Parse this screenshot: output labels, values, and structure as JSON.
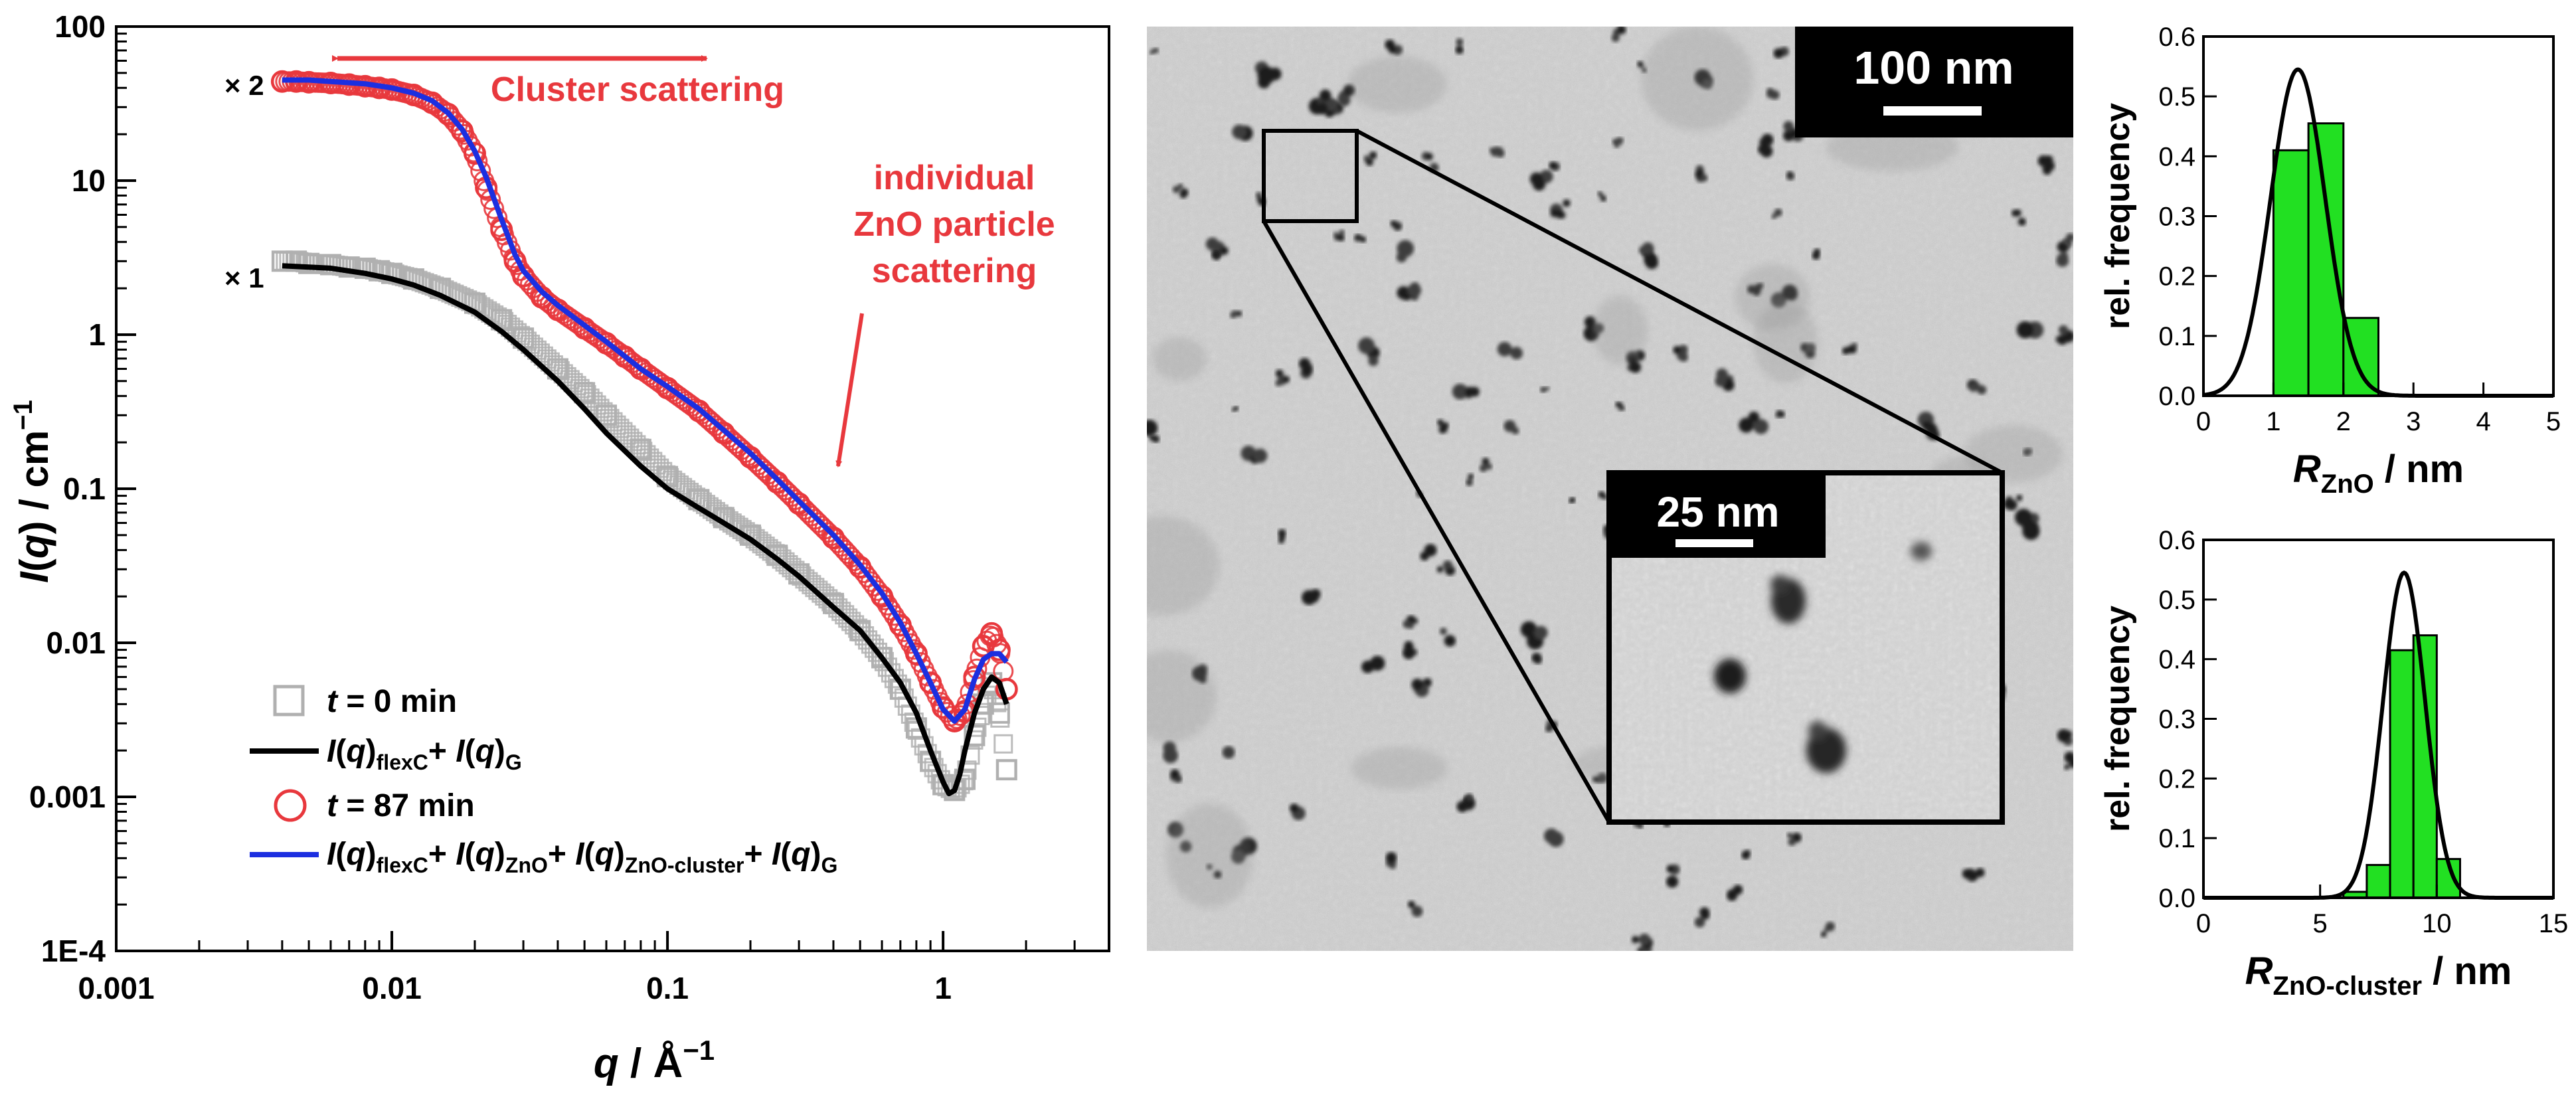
{
  "chart_data": [
    {
      "id": "saxs",
      "type": "scatter",
      "xlabel": "q / Å⁻¹",
      "ylabel": "I(q) / cm⁻¹",
      "xscale": "log",
      "yscale": "log",
      "xlim": [
        0.001,
        4
      ],
      "ylim": [
        0.0001,
        100
      ],
      "x_ticks": [
        0.001,
        0.01,
        0.1,
        1
      ],
      "x_tick_labels": [
        "0.001",
        "0.01",
        "0.1",
        "1"
      ],
      "y_ticks": [
        0.0001,
        0.001,
        0.01,
        0.1,
        1,
        10,
        100
      ],
      "y_tick_labels": [
        "1E-4",
        "0.001",
        "0.01",
        "0.1",
        "1",
        "10",
        "100"
      ],
      "annotations": {
        "cluster": "Cluster scattering",
        "individual": [
          "individual",
          "ZnO particle",
          "scattering"
        ],
        "times2": "× 2",
        "times1": "× 1"
      },
      "legend": {
        "placement": "bottom-left",
        "entries": [
          {
            "key": "t0",
            "parts": [
              {
                "t": "t",
                "i": true
              },
              {
                "t": " = 0 min"
              }
            ]
          },
          {
            "key": "fit0",
            "parts": [
              {
                "t": "I",
                "i": true
              },
              {
                "t": "("
              },
              {
                "t": "q",
                "i": true
              },
              {
                "t": ")"
              },
              {
                "t": "flexC",
                "sub": true
              },
              {
                "t": "+ "
              },
              {
                "t": "I",
                "i": true
              },
              {
                "t": "("
              },
              {
                "t": "q",
                "i": true
              },
              {
                "t": ")"
              },
              {
                "t": "G",
                "sub": true
              }
            ]
          },
          {
            "key": "t87",
            "parts": [
              {
                "t": "t",
                "i": true
              },
              {
                "t": " = 87 min"
              }
            ]
          },
          {
            "key": "fit87",
            "parts": [
              {
                "t": "I",
                "i": true
              },
              {
                "t": "("
              },
              {
                "t": "q",
                "i": true
              },
              {
                "t": ")"
              },
              {
                "t": "flexC",
                "sub": true
              },
              {
                "t": "+ "
              },
              {
                "t": "I",
                "i": true
              },
              {
                "t": "("
              },
              {
                "t": "q",
                "i": true
              },
              {
                "t": ")"
              },
              {
                "t": "ZnO",
                "sub": true
              },
              {
                "t": "+ "
              },
              {
                "t": "I",
                "i": true
              },
              {
                "t": "("
              },
              {
                "t": "q",
                "i": true
              },
              {
                "t": ")"
              },
              {
                "t": "ZnO-cluster",
                "sub": true
              },
              {
                "t": "+ "
              },
              {
                "t": "I",
                "i": true
              },
              {
                "t": "("
              },
              {
                "t": "q",
                "i": true
              },
              {
                "t": ")"
              },
              {
                "t": "G",
                "sub": true
              }
            ]
          }
        ]
      },
      "series": [
        {
          "key": "t0",
          "marker": "square",
          "color": "#b0b0b0",
          "x": [
            0.004,
            0.0045,
            0.005,
            0.006,
            0.007,
            0.008,
            0.009,
            0.01,
            0.012,
            0.015,
            0.02,
            0.025,
            0.03,
            0.04,
            0.05,
            0.06,
            0.08,
            0.1,
            0.13,
            0.16,
            0.2,
            0.25,
            0.3,
            0.4,
            0.5,
            0.6,
            0.7,
            0.8,
            0.9,
            1.0,
            1.1,
            1.2,
            1.3,
            1.4,
            1.5,
            1.6,
            1.7
          ],
          "y": [
            3.0,
            3.0,
            2.9,
            2.85,
            2.75,
            2.7,
            2.6,
            2.5,
            2.3,
            2.0,
            1.6,
            1.25,
            0.95,
            0.6,
            0.42,
            0.3,
            0.18,
            0.12,
            0.085,
            0.065,
            0.05,
            0.037,
            0.028,
            0.018,
            0.012,
            0.008,
            0.005,
            0.0028,
            0.0017,
            0.0012,
            0.0011,
            0.0013,
            0.0025,
            0.004,
            0.0055,
            0.0035,
            0.0015
          ]
        },
        {
          "key": "fit0",
          "marker": "line",
          "color": "#000000",
          "x": [
            0.004,
            0.006,
            0.008,
            0.01,
            0.012,
            0.015,
            0.02,
            0.025,
            0.03,
            0.04,
            0.05,
            0.06,
            0.08,
            0.1,
            0.13,
            0.16,
            0.2,
            0.25,
            0.3,
            0.4,
            0.5,
            0.6,
            0.7,
            0.8,
            0.9,
            1.0,
            1.05,
            1.1,
            1.15,
            1.2,
            1.3,
            1.4,
            1.5,
            1.6,
            1.7
          ],
          "y": [
            2.8,
            2.7,
            2.5,
            2.3,
            2.1,
            1.8,
            1.4,
            1.05,
            0.8,
            0.5,
            0.33,
            0.23,
            0.14,
            0.1,
            0.075,
            0.06,
            0.047,
            0.035,
            0.027,
            0.017,
            0.012,
            0.008,
            0.0055,
            0.0035,
            0.002,
            0.00125,
            0.00105,
            0.0011,
            0.0014,
            0.002,
            0.0035,
            0.005,
            0.006,
            0.0055,
            0.004
          ]
        },
        {
          "key": "t87",
          "marker": "circle",
          "color": "#e8383d",
          "x": [
            0.004,
            0.0045,
            0.005,
            0.006,
            0.007,
            0.008,
            0.009,
            0.01,
            0.012,
            0.014,
            0.016,
            0.018,
            0.02,
            0.022,
            0.025,
            0.028,
            0.03,
            0.035,
            0.04,
            0.05,
            0.06,
            0.07,
            0.08,
            0.1,
            0.13,
            0.16,
            0.2,
            0.25,
            0.3,
            0.4,
            0.5,
            0.6,
            0.7,
            0.8,
            0.9,
            1.0,
            1.1,
            1.2,
            1.3,
            1.4,
            1.5,
            1.6,
            1.7
          ],
          "y": [
            44,
            44,
            43.5,
            43,
            42,
            41,
            40,
            39,
            36,
            32,
            27,
            21,
            15,
            9,
            4.8,
            3.0,
            2.4,
            1.75,
            1.45,
            1.1,
            0.88,
            0.72,
            0.6,
            0.45,
            0.32,
            0.23,
            0.16,
            0.11,
            0.08,
            0.048,
            0.031,
            0.02,
            0.013,
            0.0085,
            0.0055,
            0.0038,
            0.0031,
            0.0036,
            0.006,
            0.0095,
            0.0115,
            0.009,
            0.005
          ]
        },
        {
          "key": "fit87",
          "marker": "line",
          "color": "#1c2fe0",
          "x": [
            0.004,
            0.005,
            0.006,
            0.008,
            0.01,
            0.012,
            0.014,
            0.016,
            0.018,
            0.02,
            0.022,
            0.025,
            0.028,
            0.03,
            0.035,
            0.04,
            0.05,
            0.06,
            0.08,
            0.1,
            0.13,
            0.16,
            0.2,
            0.25,
            0.3,
            0.4,
            0.5,
            0.6,
            0.7,
            0.8,
            0.9,
            1.0,
            1.1,
            1.2,
            1.3,
            1.4,
            1.5,
            1.6,
            1.7
          ],
          "y": [
            45,
            45,
            44,
            42.5,
            40,
            37,
            33,
            27.5,
            21.5,
            15.5,
            10.5,
            5.6,
            3.3,
            2.6,
            1.9,
            1.55,
            1.15,
            0.9,
            0.6,
            0.46,
            0.33,
            0.24,
            0.17,
            0.115,
            0.083,
            0.05,
            0.032,
            0.021,
            0.0135,
            0.0085,
            0.0055,
            0.0037,
            0.0031,
            0.0037,
            0.0058,
            0.0078,
            0.0085,
            0.0085,
            0.0075
          ]
        }
      ]
    },
    {
      "id": "hist1",
      "type": "bar",
      "xlabel_main": "R",
      "xlabel_sub": "ZnO",
      "xlabel_unit": " / nm",
      "ylabel": "rel. frequency",
      "xlim": [
        0,
        5
      ],
      "ylim": [
        0,
        0.6
      ],
      "x_ticks": [
        0,
        1,
        2,
        3,
        4,
        5
      ],
      "y_ticks": [
        0.0,
        0.1,
        0.2,
        0.3,
        0.4,
        0.5,
        0.6
      ],
      "y_tick_labels": [
        "0.0",
        "0.1",
        "0.2",
        "0.3",
        "0.4",
        "0.5",
        "0.6"
      ],
      "bin_width": 0.5,
      "bin_centers": [
        1.25,
        1.75,
        2.25
      ],
      "values": [
        0.41,
        0.455,
        0.13
      ],
      "fit": {
        "type": "gaussian",
        "mu": 1.35,
        "sigma": 0.39,
        "amplitude": 0.545
      }
    },
    {
      "id": "hist2",
      "type": "bar",
      "xlabel_main": "R",
      "xlabel_sub": "ZnO-cluster",
      "xlabel_unit": " / nm",
      "ylabel": "rel. frequency",
      "xlim": [
        0,
        15
      ],
      "ylim": [
        0,
        0.6
      ],
      "x_ticks": [
        0,
        5,
        10,
        15
      ],
      "y_ticks": [
        0.0,
        0.1,
        0.2,
        0.3,
        0.4,
        0.5,
        0.6
      ],
      "y_tick_labels": [
        "0.0",
        "0.1",
        "0.2",
        "0.3",
        "0.4",
        "0.5",
        "0.6"
      ],
      "bin_width": 1.0,
      "bin_centers": [
        6.5,
        7.5,
        8.5,
        9.5,
        10.5
      ],
      "values": [
        0.01,
        0.055,
        0.415,
        0.44,
        0.065
      ],
      "fit": {
        "type": "gaussian",
        "mu": 8.6,
        "sigma": 0.9,
        "amplitude": 0.545
      }
    }
  ],
  "tem": {
    "scale_bar_main": "100 nm",
    "scale_bar_inset": "25 nm"
  },
  "colors": {
    "grey": "#b0b0b0",
    "black": "#000000",
    "red": "#e8383d",
    "blue": "#1c2fe0",
    "green": "#22e022"
  }
}
